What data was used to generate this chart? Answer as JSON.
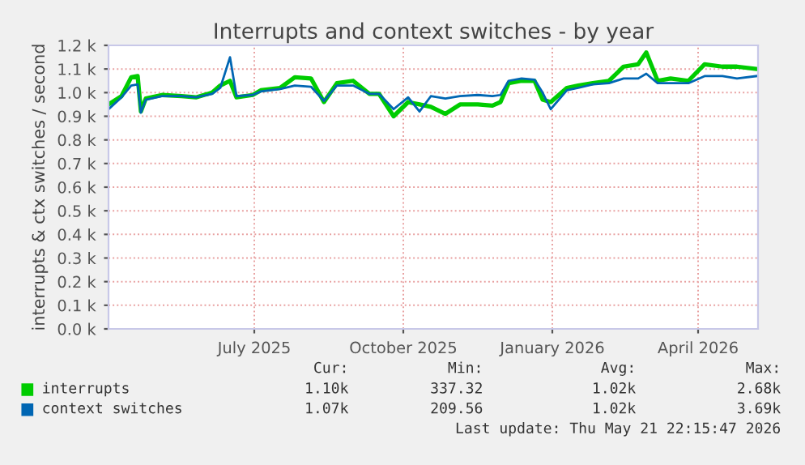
{
  "chart_data": {
    "type": "line",
    "title": "Interrupts and context switches - by year",
    "ylabel": "interrupts & ctx switches / second",
    "x": [
      "2025-04-17",
      "2025-04-25",
      "2025-05-01",
      "2025-05-05",
      "2025-05-07",
      "2025-05-10",
      "2025-05-20",
      "2025-06-01",
      "2025-06-10",
      "2025-06-20",
      "2025-06-25",
      "2025-07-01",
      "2025-07-05",
      "2025-07-15",
      "2025-07-20",
      "2025-08-01",
      "2025-08-10",
      "2025-08-20",
      "2025-08-28",
      "2025-09-05",
      "2025-09-15",
      "2025-09-25",
      "2025-10-01",
      "2025-10-10",
      "2025-10-19",
      "2025-10-26",
      "2025-11-02",
      "2025-11-11",
      "2025-11-20",
      "2025-12-01",
      "2025-12-10",
      "2025-12-15",
      "2025-12-20",
      "2025-12-28",
      "2026-01-05",
      "2026-01-10",
      "2026-01-15",
      "2026-01-25",
      "2026-02-01",
      "2026-02-10",
      "2026-02-20",
      "2026-03-01",
      "2026-03-10",
      "2026-03-15",
      "2026-03-22",
      "2026-03-30",
      "2026-04-10",
      "2026-04-20",
      "2026-05-01",
      "2026-05-10",
      "2026-05-22"
    ],
    "series": [
      {
        "name": "interrupts",
        "color": "#00cc00",
        "values": [
          950,
          985,
          1065,
          1070,
          920,
          975,
          990,
          985,
          980,
          1000,
          1030,
          1050,
          980,
          990,
          1010,
          1020,
          1065,
          1060,
          960,
          1040,
          1050,
          995,
          995,
          900,
          960,
          950,
          940,
          910,
          950,
          950,
          945,
          960,
          1040,
          1050,
          1050,
          970,
          960,
          1020,
          1030,
          1040,
          1050,
          1110,
          1120,
          1170,
          1050,
          1060,
          1050,
          1120,
          1110,
          1110,
          1100
        ]
      },
      {
        "name": "context switches",
        "color": "#0066b3",
        "values": [
          930,
          980,
          1030,
          1035,
          915,
          970,
          985,
          985,
          980,
          995,
          1020,
          1150,
          985,
          990,
          1005,
          1015,
          1030,
          1025,
          965,
          1030,
          1030,
          995,
          995,
          930,
          980,
          920,
          985,
          975,
          985,
          990,
          985,
          990,
          1050,
          1060,
          1055,
          1000,
          930,
          1010,
          1020,
          1035,
          1040,
          1060,
          1060,
          1080,
          1040,
          1040,
          1040,
          1070,
          1070,
          1060,
          1070
        ]
      }
    ],
    "xlim": [
      "2025-04-17",
      "2026-05-23"
    ],
    "xticks": [
      {
        "value": "2025-07-16",
        "label": "July 2025"
      },
      {
        "value": "2025-10-16",
        "label": "October 2025"
      },
      {
        "value": "2026-01-16",
        "label": "January 2026"
      },
      {
        "value": "2026-04-16",
        "label": "April 2026"
      }
    ],
    "ylim": [
      0,
      1200
    ],
    "yticks": [
      {
        "value": 0,
        "label": "0.0 k"
      },
      {
        "value": 100,
        "label": "0.1 k"
      },
      {
        "value": 200,
        "label": "0.2 k"
      },
      {
        "value": 300,
        "label": "0.3 k"
      },
      {
        "value": 400,
        "label": "0.4 k"
      },
      {
        "value": 500,
        "label": "0.5 k"
      },
      {
        "value": 600,
        "label": "0.6 k"
      },
      {
        "value": 700,
        "label": "0.7 k"
      },
      {
        "value": 800,
        "label": "0.8 k"
      },
      {
        "value": 900,
        "label": "0.9 k"
      },
      {
        "value": 1000,
        "label": "1.0 k"
      },
      {
        "value": 1100,
        "label": "1.1 k"
      },
      {
        "value": 1200,
        "label": "1.2 k"
      }
    ],
    "grid": true,
    "legend": "bottom",
    "marker": "none",
    "line_style": "solid",
    "annotations": [
      "Cur:",
      "Min:",
      "Avg:",
      "Max:",
      "1.10k",
      "337.32",
      "1.02k",
      "2.68k",
      "1.07k",
      "209.56",
      "1.02k",
      "3.69k",
      "Last update: Thu May 21 22:15:47 2026"
    ]
  }
}
